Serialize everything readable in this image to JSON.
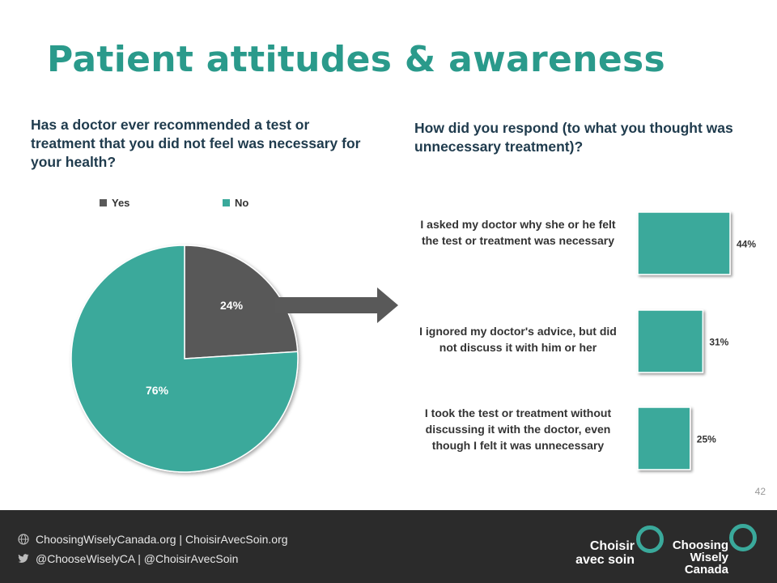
{
  "slide": {
    "title": "Patient attitudes & awareness",
    "page_number": "42"
  },
  "left_question": "Has a doctor ever recommended a test or treatment that you did not feel was necessary for your health?",
  "right_question": "How did you respond (to what you thought was unnecessary treatment)?",
  "colors": {
    "accent": "#3aa99b",
    "dark": "#595959",
    "title": "#2a9a8b",
    "footer": "#2b2b2b"
  },
  "chart_data": [
    {
      "type": "pie",
      "legend": [
        "Yes",
        "No"
      ],
      "legend_position": "top",
      "slices": [
        {
          "name": "Yes",
          "value": 24,
          "label": "24%",
          "color": "#595959"
        },
        {
          "name": "No",
          "value": 76,
          "label": "76%",
          "color": "#3aa99b"
        }
      ]
    },
    {
      "type": "bar",
      "orientation": "horizontal",
      "categories": [
        "I asked my doctor why she or he felt the test or treatment was necessary",
        "I ignored my doctor's advice, but did not discuss it with him or her",
        "I took the test or treatment without discussing it with the doctor, even though I felt it was unnecessary"
      ],
      "values": [
        44,
        31,
        25
      ],
      "value_labels": [
        "44%",
        "31%",
        "25%"
      ],
      "color": "#3aa99b"
    }
  ],
  "footer": {
    "websites": "ChoosingWiselyCanada.org | ChoisirAvecSoin.org",
    "twitter": "@ChooseWiselyCA | @ChoisirAvecSoin",
    "logo_fr_line1": "Choisir",
    "logo_fr_line2": "avec soin",
    "logo_en_line1": "Choosing",
    "logo_en_line2": "Wisely",
    "logo_en_line3": "Canada"
  }
}
